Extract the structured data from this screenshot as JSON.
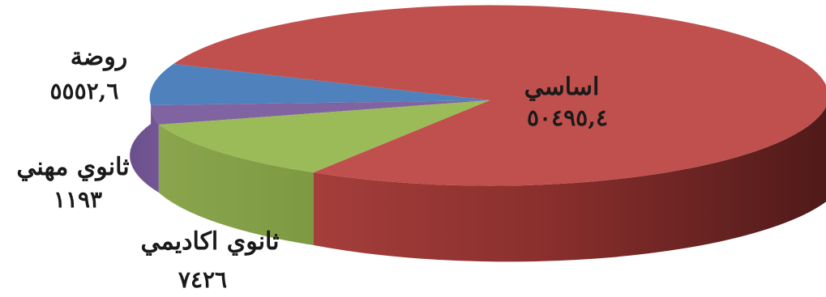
{
  "chart_data": {
    "type": "pie",
    "style": "3d",
    "title": "",
    "slices": [
      {
        "label": "اساسي",
        "display_value": "٥٠٤٩٥,٤",
        "value": 50495.4,
        "color": "#c0504d"
      },
      {
        "label": "روضة",
        "display_value": "٥٥٥٢,٦",
        "value": 5552.6,
        "color": "#4f81bd"
      },
      {
        "label": "ثانوي مهني",
        "display_value": "١١٩٣",
        "value": 1193,
        "color": "#8064a2"
      },
      {
        "label": "ثانوي اكاديمي",
        "display_value": "٧٤٢٦",
        "value": 7426,
        "color": "#9bbb59"
      }
    ]
  }
}
